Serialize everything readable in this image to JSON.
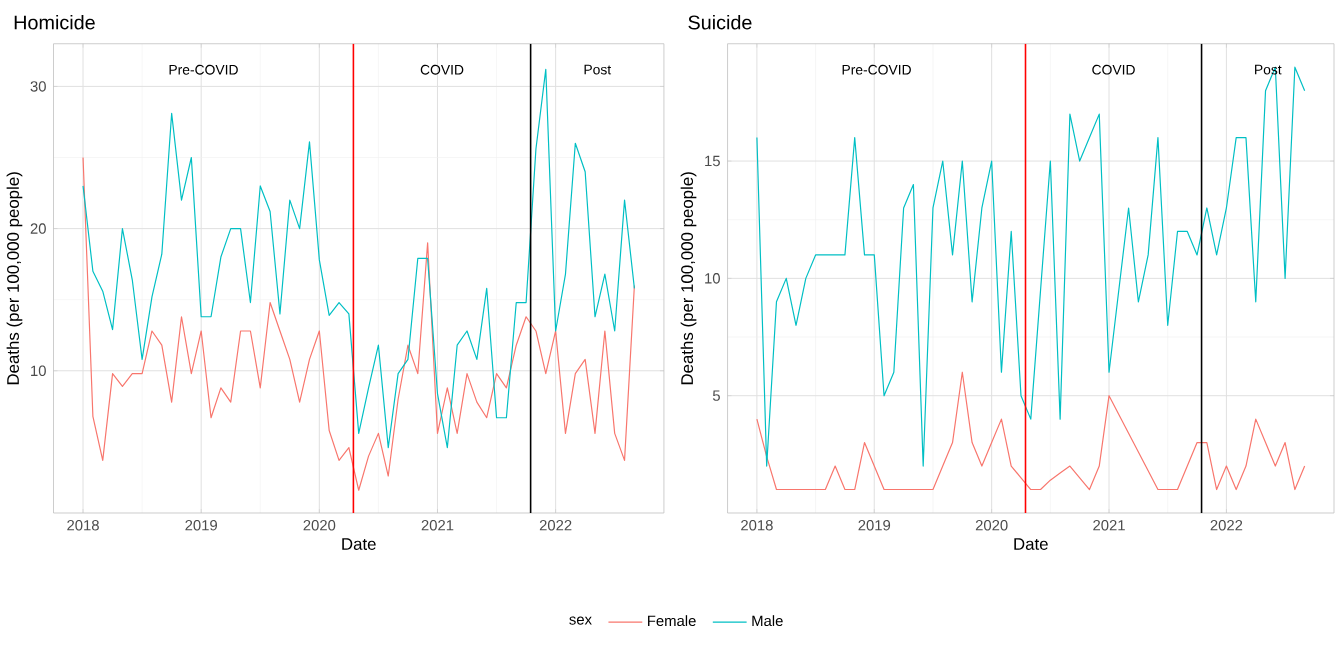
{
  "chart_data": [
    {
      "type": "line",
      "title": "Homicide",
      "xlabel": "Date",
      "ylabel": "Deaths (per 100,000 people)",
      "legend_title": "sex",
      "legend": "bottom",
      "grid": true,
      "x": [
        "2018-01",
        "2018-02",
        "2018-03",
        "2018-04",
        "2018-05",
        "2018-06",
        "2018-07",
        "2018-08",
        "2018-09",
        "2018-10",
        "2018-11",
        "2018-12",
        "2019-01",
        "2019-02",
        "2019-03",
        "2019-04",
        "2019-05",
        "2019-06",
        "2019-07",
        "2019-08",
        "2019-09",
        "2019-10",
        "2019-11",
        "2019-12",
        "2020-01",
        "2020-02",
        "2020-03",
        "2020-04",
        "2020-05",
        "2020-06",
        "2020-07",
        "2020-08",
        "2020-09",
        "2020-10",
        "2020-11",
        "2020-12",
        "2021-01",
        "2021-02",
        "2021-03",
        "2021-04",
        "2021-05",
        "2021-06",
        "2021-07",
        "2021-08",
        "2021-09",
        "2021-10",
        "2021-11",
        "2021-12",
        "2022-01",
        "2022-02",
        "2022-03",
        "2022-04",
        "2022-05",
        "2022-06",
        "2022-07",
        "2022-08",
        "2022-09"
      ],
      "xlim": [
        "2017-10",
        "2022-12"
      ],
      "xticks": [
        "2018",
        "2019",
        "2020",
        "2021",
        "2022"
      ],
      "ylim": [
        0,
        33
      ],
      "yticks": [
        10,
        20,
        30
      ],
      "series": [
        {
          "name": "Female",
          "color": "#f8766d",
          "values": [
            25,
            6.8,
            3.7,
            9.8,
            8.9,
            9.8,
            9.8,
            12.8,
            11.8,
            7.8,
            13.8,
            9.8,
            12.8,
            6.7,
            8.8,
            7.8,
            12.8,
            12.8,
            8.8,
            14.8,
            12.8,
            10.8,
            7.8,
            10.8,
            12.8,
            5.8,
            3.7,
            4.6,
            1.6,
            4,
            5.6,
            2.6,
            8,
            11.8,
            9.8,
            19,
            5.6,
            8.8,
            5.6,
            9.8,
            7.8,
            6.7,
            9.8,
            8.8,
            11.8,
            13.8,
            12.8,
            9.8,
            12.8,
            5.6,
            9.8,
            10.8,
            5.6,
            12.8,
            5.6,
            3.7,
            16
          ]
        },
        {
          "name": "Male",
          "color": "#00bfc4",
          "values": [
            23,
            17,
            15.6,
            12.9,
            20,
            16.4,
            10.8,
            15.2,
            18.2,
            28.1,
            22,
            25,
            13.8,
            13.8,
            18,
            20,
            20,
            14.8,
            23,
            21.2,
            14,
            22,
            20,
            26.1,
            17.8,
            13.9,
            14.8,
            14,
            5.6,
            8.8,
            11.8,
            4.6,
            9.8,
            10.8,
            17.9,
            17.9,
            8.4,
            4.6,
            11.8,
            12.8,
            10.8,
            15.8,
            6.7,
            6.7,
            14.8,
            14.8,
            25.6,
            31.2,
            12.8,
            16.8,
            26,
            24,
            13.8,
            16.8,
            12.8,
            22,
            15.8
          ]
        }
      ],
      "ref_lines": [
        {
          "axis": "x",
          "value": "2020-04-15",
          "color": "#ff0000"
        },
        {
          "axis": "x",
          "value": "2021-10-15",
          "color": "#000000"
        }
      ],
      "annotations": [
        "Pre-COVID",
        "COVID",
        "Post"
      ]
    },
    {
      "type": "line",
      "title": "Suicide",
      "xlabel": "Date",
      "ylabel": "Deaths (per 100,000 people)",
      "grid": true,
      "x": [
        "2018-01",
        "2018-02",
        "2018-03",
        "2018-04",
        "2018-05",
        "2018-06",
        "2018-07",
        "2018-08",
        "2018-09",
        "2018-10",
        "2018-11",
        "2018-12",
        "2019-01",
        "2019-02",
        "2019-03",
        "2019-04",
        "2019-05",
        "2019-06",
        "2019-07",
        "2019-08",
        "2019-09",
        "2019-10",
        "2019-11",
        "2019-12",
        "2020-01",
        "2020-02",
        "2020-03",
        "2020-04",
        "2020-05",
        "2020-06",
        "2020-07",
        "2020-08",
        "2020-09",
        "2020-10",
        "2020-11",
        "2020-12",
        "2021-01",
        "2021-02",
        "2021-03",
        "2021-04",
        "2021-05",
        "2021-06",
        "2021-07",
        "2021-08",
        "2021-09",
        "2021-10",
        "2021-11",
        "2021-12",
        "2022-01",
        "2022-02",
        "2022-03",
        "2022-04",
        "2022-05",
        "2022-06",
        "2022-07",
        "2022-08",
        "2022-09"
      ],
      "xlim": [
        "2017-10",
        "2022-12"
      ],
      "xticks": [
        "2018",
        "2019",
        "2020",
        "2021",
        "2022"
      ],
      "ylim": [
        0,
        20
      ],
      "yticks": [
        5,
        10,
        15
      ],
      "series": [
        {
          "color": "#f8766d",
          "values": [
            4,
            2.4,
            1,
            1,
            1,
            1,
            1,
            1,
            2,
            1,
            1,
            3,
            2,
            1,
            1,
            1,
            1,
            1,
            1,
            2,
            3,
            6,
            3,
            2,
            3,
            4,
            2,
            1.5,
            1,
            1,
            1.4,
            1.7,
            2,
            1.5,
            1,
            2,
            5,
            4.2,
            3.4,
            2.6,
            1.8,
            1,
            1,
            1,
            2,
            3,
            3,
            1,
            2,
            1,
            2,
            4,
            3,
            2,
            3,
            1,
            2
          ]
        },
        {
          "color": "#00bfc4",
          "values": [
            16,
            2,
            9,
            10,
            8,
            10,
            11,
            11,
            11,
            11,
            16,
            11,
            11,
            5,
            6,
            13,
            14,
            2,
            13,
            15,
            11,
            15,
            9,
            13,
            15,
            6,
            12,
            5,
            4,
            9.5,
            15,
            4,
            17,
            15,
            16,
            17,
            6,
            9.5,
            13,
            9,
            11,
            16,
            8,
            12,
            12,
            11,
            13,
            11,
            13,
            16,
            16,
            9,
            18,
            19,
            10,
            19,
            18
          ]
        }
      ],
      "ref_lines": [
        {
          "axis": "x",
          "value": "2020-04-15",
          "color": "#ff0000"
        },
        {
          "axis": "x",
          "value": "2021-10-15",
          "color": "#000000"
        }
      ],
      "annotations": [
        "Pre-COVID",
        "COVID",
        "Post"
      ]
    }
  ]
}
